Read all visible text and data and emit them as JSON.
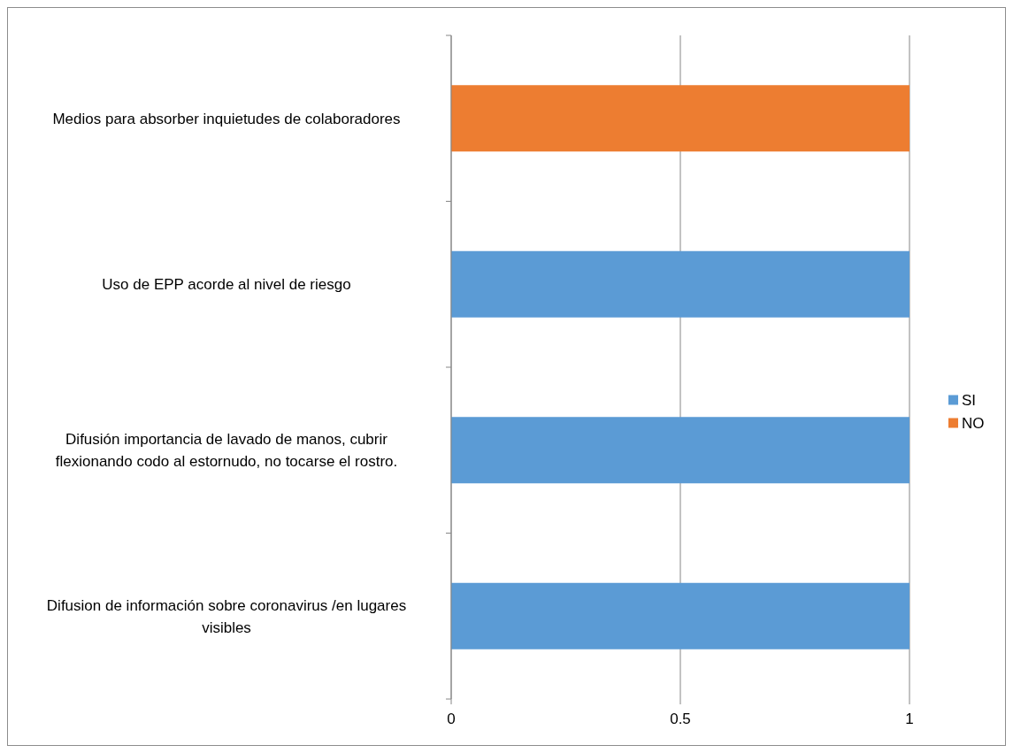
{
  "chart_data": {
    "type": "bar",
    "orientation": "horizontal",
    "stacked": true,
    "categories": [
      "Medios para absorber inquietudes de colaboradores",
      "Uso de EPP acorde al nivel de riesgo",
      "Difusión importancia de lavado de manos, cubrir flexionando codo al estornudo, no tocarse el rostro.",
      "Difusion de información sobre coronavirus /en lugares visibles"
    ],
    "series": [
      {
        "name": "SI",
        "color": "#5b9bd5",
        "values": [
          null,
          1,
          1,
          1
        ]
      },
      {
        "name": "NO",
        "color": "#ed7d31",
        "values": [
          1,
          null,
          null,
          null
        ]
      }
    ],
    "xlim": [
      0,
      1
    ],
    "xticks": [
      0,
      0.5,
      1
    ],
    "grid": "x",
    "legend": "right"
  }
}
